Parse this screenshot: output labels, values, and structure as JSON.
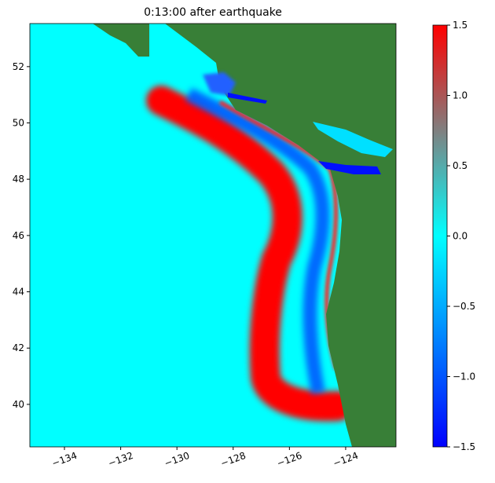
{
  "chart_data": {
    "type": "heatmap",
    "title": "0:13:00 after earthquake",
    "xlim": [
      -135.23,
      -122.21
    ],
    "xticks": [
      {
        "value": -134,
        "label": "−134"
      },
      {
        "value": -132,
        "label": "−132"
      },
      {
        "value": -130,
        "label": "−130"
      },
      {
        "value": -128,
        "label": "−128"
      },
      {
        "value": -126,
        "label": "−126"
      },
      {
        "value": -124,
        "label": "−124"
      }
    ],
    "ylim": [
      38.49,
      53.53
    ],
    "yticks": [
      40,
      42,
      44,
      46,
      48,
      50,
      52
    ],
    "colorbar": {
      "lim": [
        -1.5,
        1.5
      ],
      "ticks": [
        {
          "value": -1.5,
          "label": "−1.5"
        },
        {
          "value": -1.0,
          "label": "−1.0"
        },
        {
          "value": -0.5,
          "label": "−0.5"
        },
        {
          "value": 0.0,
          "label": "0.0"
        },
        0.5,
        {
          "value": 1.0,
          "label": "1.0"
        },
        1.5
      ],
      "colors": [
        "#0000ff",
        "#0080ff",
        "#00ffff",
        "#808080",
        "#ff0000"
      ]
    }
  }
}
